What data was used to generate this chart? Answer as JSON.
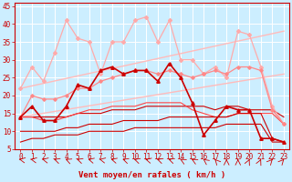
{
  "background_color": "#cceeff",
  "grid_color": "#ffffff",
  "xlabel": "Vent moyen/en rafales ( km/h )",
  "xlabel_color": "#cc0000",
  "xlabel_fontsize": 6.5,
  "tick_color": "#cc0000",
  "tick_fontsize": 5.5,
  "xlim": [
    -0.5,
    23.5
  ],
  "ylim": [
    5,
    46
  ],
  "yticks": [
    5,
    10,
    15,
    20,
    25,
    30,
    35,
    40,
    45
  ],
  "xticks": [
    0,
    1,
    2,
    3,
    4,
    5,
    6,
    7,
    8,
    9,
    10,
    11,
    12,
    13,
    14,
    15,
    16,
    17,
    18,
    19,
    20,
    21,
    22,
    23
  ],
  "lines": [
    {
      "x": [
        0,
        1,
        2,
        3,
        4,
        5,
        6,
        7,
        8,
        9,
        10,
        11,
        12,
        13,
        14,
        15,
        16,
        17,
        18,
        19,
        20,
        21,
        22,
        23
      ],
      "y": [
        22,
        28,
        24,
        32,
        41,
        36,
        35,
        26,
        35,
        35,
        41,
        42,
        35,
        41,
        30,
        30,
        26,
        28,
        25,
        38,
        37,
        28,
        17,
        12
      ],
      "color": "#ffaaaa",
      "lw": 0.9,
      "marker": "D",
      "ms": 2.0,
      "zorder": 3
    },
    {
      "x": [
        0,
        1,
        2,
        3,
        4,
        5,
        6,
        7,
        8,
        9,
        10,
        11,
        12,
        13,
        14,
        15,
        16,
        17,
        18,
        19,
        20,
        21,
        22,
        23
      ],
      "y": [
        14,
        17,
        13,
        13,
        17,
        23,
        22,
        27,
        28,
        26,
        27,
        27,
        24,
        29,
        25,
        18,
        9,
        13,
        17,
        16,
        16,
        8,
        8,
        7
      ],
      "color": "#cc0000",
      "lw": 1.2,
      "marker": "^",
      "ms": 2.5,
      "zorder": 4
    },
    {
      "x": [
        0,
        23
      ],
      "y": [
        22,
        38
      ],
      "color": "#ffbbbb",
      "lw": 1.0,
      "marker": null,
      "ms": 0,
      "zorder": 2
    },
    {
      "x": [
        0,
        23
      ],
      "y": [
        14,
        26
      ],
      "color": "#ffbbbb",
      "lw": 1.0,
      "marker": null,
      "ms": 0,
      "zorder": 2
    },
    {
      "x": [
        0,
        1,
        2,
        3,
        4,
        5,
        6,
        7,
        8,
        9,
        10,
        11,
        12,
        13,
        14,
        15,
        16,
        17,
        18,
        19,
        20,
        21,
        22,
        23
      ],
      "y": [
        14,
        20,
        19,
        19,
        20,
        22,
        22,
        24,
        25,
        26,
        27,
        27,
        26,
        27,
        26,
        25,
        26,
        27,
        26,
        28,
        28,
        27,
        16,
        12
      ],
      "color": "#ff8888",
      "lw": 0.9,
      "marker": "D",
      "ms": 1.8,
      "zorder": 3
    },
    {
      "x": [
        0,
        1,
        2,
        3,
        4,
        5,
        6,
        7,
        8,
        9,
        10,
        11,
        12,
        13,
        14,
        15,
        16,
        17,
        18,
        19,
        20,
        21,
        22,
        23
      ],
      "y": [
        14,
        14,
        14,
        14,
        14,
        15,
        15,
        15,
        16,
        16,
        16,
        17,
        17,
        17,
        17,
        17,
        17,
        16,
        17,
        17,
        16,
        16,
        16,
        14
      ],
      "color": "#cc0000",
      "lw": 0.8,
      "marker": null,
      "ms": 0,
      "zorder": 2
    },
    {
      "x": [
        0,
        1,
        2,
        3,
        4,
        5,
        6,
        7,
        8,
        9,
        10,
        11,
        12,
        13,
        14,
        15,
        16,
        17,
        18,
        19,
        20,
        21,
        22,
        23
      ],
      "y": [
        7,
        8,
        8,
        9,
        9,
        9,
        10,
        10,
        10,
        10,
        11,
        11,
        11,
        11,
        11,
        11,
        11,
        11,
        12,
        12,
        12,
        12,
        7,
        7
      ],
      "color": "#cc0000",
      "lw": 0.8,
      "marker": null,
      "ms": 0,
      "zorder": 2
    },
    {
      "x": [
        0,
        1,
        2,
        3,
        4,
        5,
        6,
        7,
        8,
        9,
        10,
        11,
        12,
        13,
        14,
        15,
        16,
        17,
        18,
        19,
        20,
        21,
        22,
        23
      ],
      "y": [
        14,
        14,
        13,
        13,
        14,
        15,
        16,
        16,
        17,
        17,
        17,
        18,
        18,
        18,
        18,
        16,
        15,
        14,
        14,
        15,
        15,
        15,
        15,
        12
      ],
      "color": "#ff4444",
      "lw": 0.8,
      "marker": null,
      "ms": 0,
      "zorder": 2
    },
    {
      "x": [
        0,
        1,
        2,
        3,
        4,
        5,
        6,
        7,
        8,
        9,
        10,
        11,
        12,
        13,
        14,
        15,
        16,
        17,
        18,
        19,
        20,
        21,
        22,
        23
      ],
      "y": [
        10,
        10,
        10,
        10,
        11,
        11,
        12,
        12,
        12,
        13,
        13,
        13,
        13,
        14,
        14,
        14,
        14,
        14,
        14,
        15,
        15,
        15,
        8,
        7
      ],
      "color": "#cc0000",
      "lw": 0.8,
      "marker": null,
      "ms": 0,
      "zorder": 2
    }
  ],
  "arrow_angles": [
    225,
    225,
    220,
    210,
    205,
    210,
    215,
    220,
    215,
    210,
    210,
    215,
    210,
    210,
    200,
    200,
    195,
    190,
    180,
    180,
    175,
    175,
    170,
    170
  ]
}
